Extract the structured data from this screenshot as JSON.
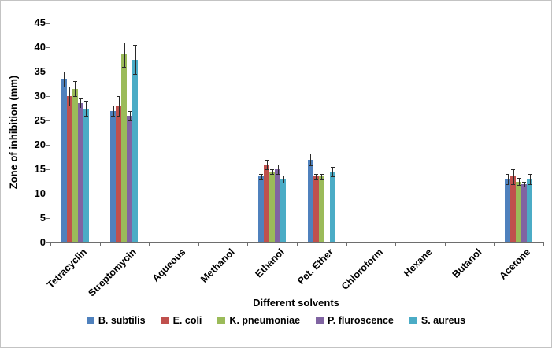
{
  "chart_data": {
    "type": "bar",
    "title": "",
    "xlabel": "Different solvents",
    "ylabel": "Zone of inhibition (mm)",
    "ylim": [
      0,
      45
    ],
    "ytick_step": 5,
    "grid": false,
    "legend_position": "bottom",
    "error_bars": true,
    "categories": [
      "Tetracyclin",
      "Streptomycin",
      "Aqueous",
      "Methanol",
      "Ethanol",
      "Pet. Ether",
      "Chloroform",
      "Hexane",
      "Butanol",
      "Acetone"
    ],
    "series": [
      {
        "name": "B. subtilis",
        "color": "#4F81BD",
        "values": [
          33.5,
          27,
          0,
          0,
          13.5,
          17,
          0,
          0,
          0,
          13
        ],
        "errors": [
          1.5,
          1,
          0,
          0,
          0.5,
          1.2,
          0,
          0,
          0,
          1
        ]
      },
      {
        "name": "E. coli",
        "color": "#C0504D",
        "values": [
          30,
          28,
          0,
          0,
          16,
          13.5,
          0,
          0,
          0,
          13.5
        ],
        "errors": [
          2,
          2,
          0,
          0,
          1,
          0.5,
          0,
          0,
          0,
          1.5
        ]
      },
      {
        "name": "K. pneumoniae",
        "color": "#9BBB59",
        "values": [
          31.5,
          38.5,
          0,
          0,
          14.5,
          13.5,
          0,
          0,
          0,
          12.5
        ],
        "errors": [
          1.5,
          2.5,
          0,
          0,
          0.5,
          0.5,
          0,
          0,
          0,
          0.7
        ]
      },
      {
        "name": "P. fluroscence",
        "color": "#8064A2",
        "values": [
          28.5,
          26,
          0,
          0,
          15,
          0,
          0,
          0,
          0,
          12
        ],
        "errors": [
          1,
          1,
          0,
          0,
          1,
          0,
          0,
          0,
          0,
          0.5
        ]
      },
      {
        "name": "S. aureus",
        "color": "#4BACC6",
        "values": [
          27.5,
          37.5,
          0,
          0,
          13,
          14.5,
          0,
          0,
          0,
          13
        ],
        "errors": [
          1.5,
          3,
          0,
          0,
          0.7,
          1,
          0,
          0,
          0,
          1
        ]
      }
    ]
  }
}
